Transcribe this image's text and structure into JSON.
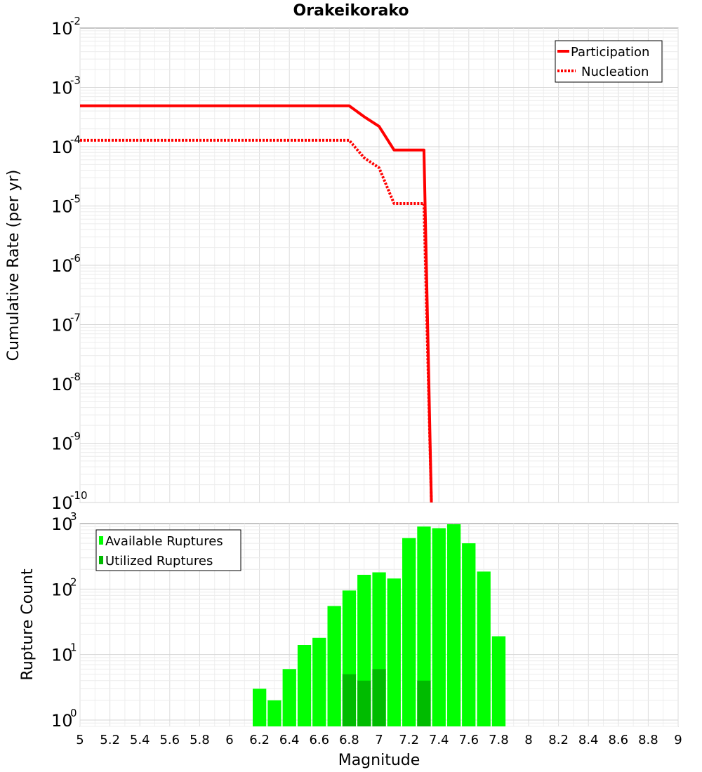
{
  "chart_data": [
    {
      "type": "line",
      "title": "Orakeikorako",
      "ylabel": "Cumulative Rate (per yr)",
      "xlabel": "",
      "xlim": [
        5,
        9
      ],
      "ylim": [
        1e-10,
        0.01
      ],
      "yscale": "log",
      "y_tick_exponents": [
        -2,
        -3,
        -4,
        -5,
        -6,
        -7,
        -8,
        -9,
        -10
      ],
      "grid": true,
      "legend_position": "top-right",
      "series": [
        {
          "name": "Participation",
          "color": "#ff0000",
          "style": "solid",
          "x": [
            5.0,
            6.8,
            6.9,
            7.0,
            7.1,
            7.2,
            7.3,
            7.35
          ],
          "y": [
            0.00049,
            0.00049,
            0.00032,
            0.00022,
            8.8e-05,
            8.8e-05,
            8.8e-05,
            1e-10
          ]
        },
        {
          "name": "Nucleation",
          "color": "#ff0000",
          "style": "dotted",
          "x": [
            5.0,
            6.8,
            6.9,
            7.0,
            7.1,
            7.2,
            7.3,
            7.35
          ],
          "y": [
            0.000128,
            0.000128,
            6.5e-05,
            4.4e-05,
            1.1e-05,
            1.1e-05,
            1.1e-05,
            1e-10
          ]
        }
      ]
    },
    {
      "type": "bar",
      "title": "",
      "xlabel": "Magnitude",
      "ylabel": "Rupture Count",
      "xlim": [
        5,
        9
      ],
      "x_ticks": [
        "5",
        "5.2",
        "5.4",
        "5.6",
        "5.8",
        "6",
        "6.2",
        "6.4",
        "6.6",
        "6.8",
        "7",
        "7.2",
        "7.4",
        "7.6",
        "7.8",
        "8",
        "8.2",
        "8.4",
        "8.6",
        "8.8",
        "9"
      ],
      "ylim": [
        0.8,
        1000
      ],
      "yscale": "log",
      "y_tick_exponents": [
        3,
        2,
        1,
        0
      ],
      "grid": true,
      "legend_position": "top-left",
      "bin_width": 0.1,
      "series": [
        {
          "name": "Available Ruptures",
          "color": "#00ff00",
          "x": [
            6.2,
            6.3,
            6.4,
            6.5,
            6.6,
            6.7,
            6.8,
            6.9,
            7.0,
            7.1,
            7.2,
            7.3,
            7.4,
            7.5,
            7.6,
            7.7,
            7.8
          ],
          "values": [
            3,
            2,
            6,
            14,
            18,
            55,
            95,
            165,
            180,
            145,
            600,
            900,
            850,
            1000,
            500,
            185,
            19
          ]
        },
        {
          "name": "Utilized Ruptures",
          "color": "#00bb00",
          "x": [
            6.8,
            6.9,
            7.0,
            7.3
          ],
          "values": [
            5,
            4,
            6,
            4
          ]
        }
      ]
    }
  ]
}
